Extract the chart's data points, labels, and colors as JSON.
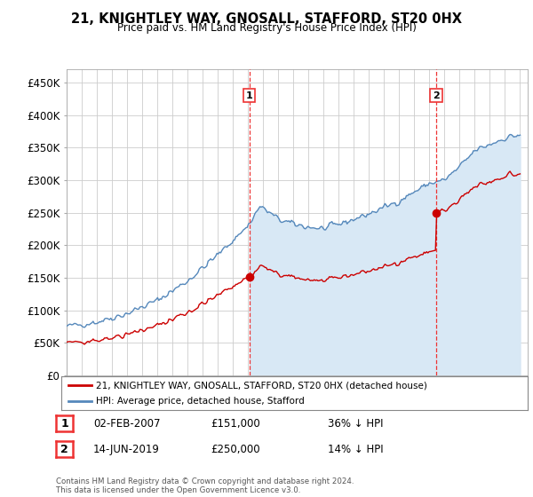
{
  "title": "21, KNIGHTLEY WAY, GNOSALL, STAFFORD, ST20 0HX",
  "subtitle": "Price paid vs. HM Land Registry's House Price Index (HPI)",
  "ylabel_ticks": [
    "£0",
    "£50K",
    "£100K",
    "£150K",
    "£200K",
    "£250K",
    "£300K",
    "£350K",
    "£400K",
    "£450K"
  ],
  "ytick_values": [
    0,
    50000,
    100000,
    150000,
    200000,
    250000,
    300000,
    350000,
    400000,
    450000
  ],
  "ylim": [
    0,
    470000
  ],
  "xlim_start": 1995.0,
  "xlim_end": 2025.5,
  "transaction1": {
    "date_num": 2007.08,
    "price": 151000,
    "label": "1",
    "date_str": "02-FEB-2007"
  },
  "transaction2": {
    "date_num": 2019.45,
    "price": 250000,
    "label": "2",
    "date_str": "14-JUN-2019"
  },
  "red_line_color": "#cc0000",
  "blue_line_color": "#5588bb",
  "fill_color": "#d8e8f5",
  "vline_color": "#ee3333",
  "background_color": "#ffffff",
  "grid_color": "#cccccc",
  "legend_label_red": "21, KNIGHTLEY WAY, GNOSALL, STAFFORD, ST20 0HX (detached house)",
  "legend_label_blue": "HPI: Average price, detached house, Stafford",
  "footer": "Contains HM Land Registry data © Crown copyright and database right 2024.\nThis data is licensed under the Open Government Licence v3.0.",
  "table_rows": [
    {
      "box": "1",
      "date": "02-FEB-2007",
      "price": "£151,000",
      "pct": "36% ↓ HPI"
    },
    {
      "box": "2",
      "date": "14-JUN-2019",
      "price": "£250,000",
      "pct": "14% ↓ HPI"
    }
  ]
}
